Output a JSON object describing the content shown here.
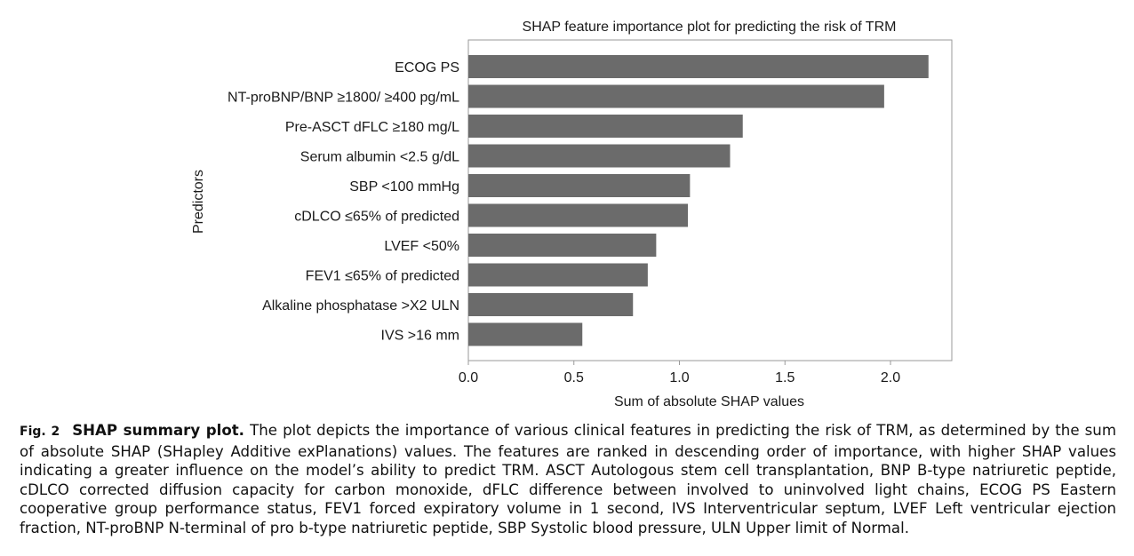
{
  "chart_data": {
    "type": "bar",
    "orientation": "horizontal",
    "title": "SHAP feature importance plot for predicting the risk of TRM",
    "xlabel": "Sum of absolute SHAP values",
    "ylabel": "Predictors",
    "xlim": [
      0,
      2.3
    ],
    "xticks": [
      "0.0",
      "0.5",
      "1.0",
      "1.5",
      "2.0"
    ],
    "categories": [
      "ECOG PS",
      "NT-proBNP/BNP ≥1800/ ≥400 pg/mL",
      "Pre-ASCT dFLC ≥180 mg/L",
      "Serum albumin <2.5 g/dL",
      "SBP <100 mmHg",
      "cDLCO ≤65% of predicted",
      "LVEF <50%",
      "FEV1 ≤65% of predicted",
      "Alkaline phosphatase >X2 ULN",
      "IVS >16 mm"
    ],
    "values": [
      2.18,
      1.97,
      1.3,
      1.24,
      1.05,
      1.04,
      0.89,
      0.85,
      0.78,
      0.54
    ],
    "bar_color": "#6b6b6b",
    "grid": false,
    "legend": "none"
  },
  "caption": {
    "fig_label": "Fig. 2",
    "heading": "SHAP summary plot.",
    "body": "The plot depicts the importance of various clinical features in predicting the risk of TRM, as determined by the sum of absolute SHAP (SHapley Additive exPlanations) values. The features are ranked in descending order of importance, with higher SHAP values indicating a greater influence on the model’s ability to predict TRM. ASCT Autologous stem cell transplantation, BNP B-type natriuretic peptide, cDLCO corrected diffusion capacity for carbon monoxide, dFLC difference between involved to uninvolved light chains, ECOG PS Eastern cooperative group performance status, FEV1 forced expiratory volume in 1 second, IVS Interventricular septum, LVEF Left ventricular ejection fraction, NT-proBNP N-terminal of pro b-type natriuretic peptide, SBP Systolic blood pressure, ULN Upper limit of Normal."
  }
}
